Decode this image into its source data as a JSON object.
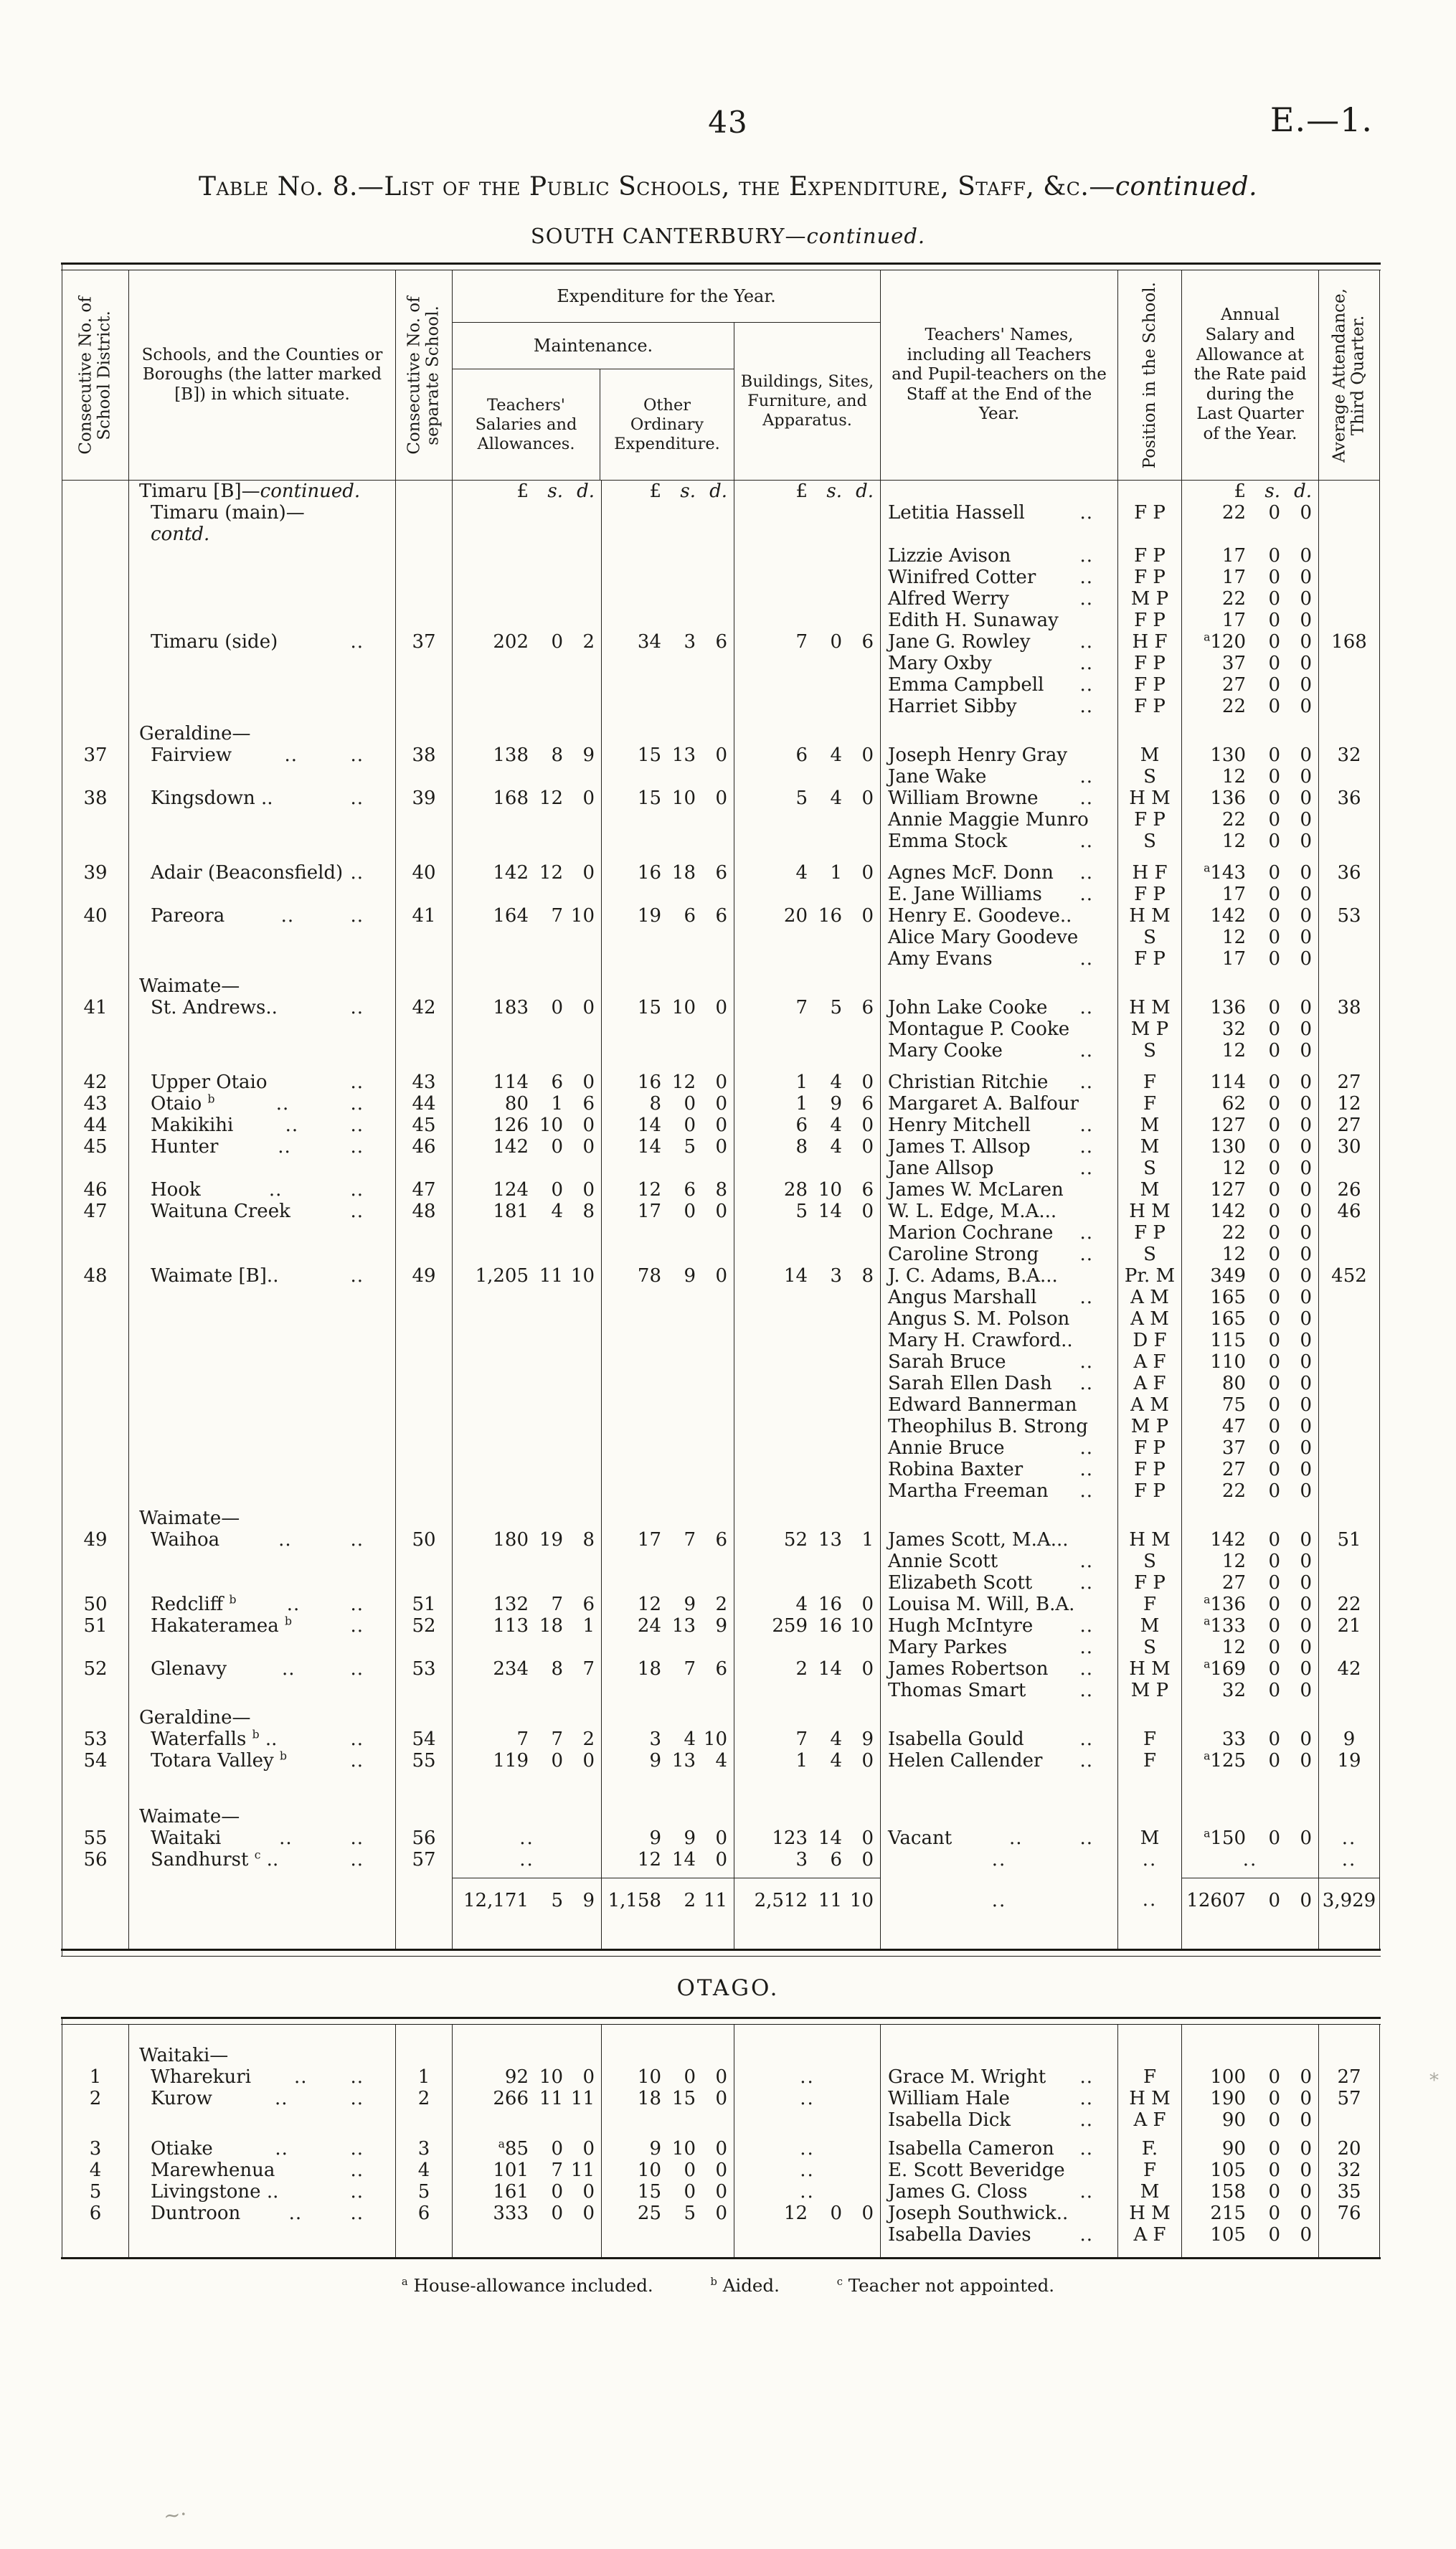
{
  "page": {
    "number": "43",
    "edition": "E.—1.",
    "title": "Table No. 8.—List of the Public Schools, the Expenditure, Staff, &c.—continued.",
    "region": "SOUTH CANTERBURY—continued.",
    "footnotes": [
      "ᵃ House-allowance included.",
      "ᵇ Aided.",
      "ᶜ Teacher not appointed."
    ]
  },
  "headers": {
    "district_no": "Consecutive No. of School District.",
    "schools": "Schools, and the Counties or Boroughs (the latter marked [B]) in which situate.",
    "school_no": "Consecutive No. of separate School.",
    "expenditure": "Expenditure for the Year.",
    "maintenance": "Maintenance.",
    "salaries": "Teachers' Salaries and Allowances.",
    "other": "Other Ordinary Expenditure.",
    "buildings": "Buildings, Sites, Furniture, and Apparatus.",
    "names": "Teachers' Names, including all Teachers and Pupil-teachers on the Staff at the End of the Year.",
    "position": "Position in the School.",
    "salary": "Annual Salary and Allowance at the Rate paid during the Last Quarter of the Year.",
    "attendance": "Average Attendance, Third Quarter."
  },
  "south_canterbury": {
    "lines": [
      {
        "currency_header": true,
        "school": "Timaru [B]—continued."
      },
      {
        "school": "Timaru (main)—contd.",
        "teacher": "Letitia Hassell",
        "teacher_dots": 1,
        "pos": "F P",
        "pay": "22 0 0"
      },
      {
        "teacher": "Lizzie Avison",
        "teacher_dots": 1,
        "pos": "F P",
        "pay": "17 0 0"
      },
      {
        "teacher": "Winifred Cotter",
        "teacher_dots": 1,
        "pos": "F P",
        "pay": "17 0 0"
      },
      {
        "teacher": "Alfred Werry",
        "teacher_dots": 1,
        "pos": "M P",
        "pay": "22 0 0"
      },
      {
        "teacher": "Edith H. Sunaway",
        "pos": "F P",
        "pay": "17 0 0"
      },
      {
        "school": "Timaru (side)",
        "school_dots": 1,
        "sep_no": "37",
        "maint": "202 0 2",
        "other": "34 3 6",
        "build": "7 0 6",
        "teacher": "Jane G. Rowley",
        "teacher_dots": 1,
        "pos": "H F",
        "pay": "ᵃ120 0 0",
        "att": "168"
      },
      {
        "teacher": "Mary Oxby",
        "teacher_dots": 1,
        "pos": "F P",
        "pay": "37 0 0"
      },
      {
        "teacher": "Emma Campbell",
        "teacher_dots": 1,
        "pos": "F P",
        "pay": "27 0 0"
      },
      {
        "teacher": "Harriet Sibby",
        "teacher_dots": 1,
        "pos": "F P",
        "pay": "22 0 0"
      },
      {
        "group": "Geraldine—"
      },
      {
        "no": "37",
        "school": "Fairview",
        "school_dots": 2,
        "sep_no": "38",
        "maint": "138 8 9",
        "other": "15 13 0",
        "build": "6 4 0",
        "teacher": "Joseph Henry Gray",
        "pos": "M",
        "pay": "130 0 0",
        "att": "32"
      },
      {
        "teacher": "Jane Wake",
        "teacher_dots": 1,
        "pos": "S",
        "pay": "12 0 0"
      },
      {
        "no": "38",
        "school": "Kingsdown ..",
        "school_dots": 1,
        "sep_no": "39",
        "maint": "168 12 0",
        "other": "15 10 0",
        "build": "5 4 0",
        "teacher": "William Browne",
        "teacher_dots": 1,
        "pos": "H M",
        "pay": "136 0 0",
        "att": "36"
      },
      {
        "teacher": "Annie Maggie Munro",
        "pos": "F P",
        "pay": "22 0 0"
      },
      {
        "teacher": "Emma Stock",
        "teacher_dots": 1,
        "pos": "S",
        "pay": "12 0 0"
      },
      {
        "gap": 14
      },
      {
        "no": "39",
        "school": "Adair (Beaconsfield)",
        "school_dots": 1,
        "sep_no": "40",
        "maint": "142 12 0",
        "other": "16 18 6",
        "build": "4 1 0",
        "teacher": "Agnes McF. Donn",
        "teacher_dots": 1,
        "pos": "H F",
        "pay": "ᵃ143 0 0",
        "att": "36"
      },
      {
        "teacher": "E. Jane Williams",
        "teacher_dots": 1,
        "pos": "F P",
        "pay": "17 0 0"
      },
      {
        "no": "40",
        "school": "Pareora",
        "school_dots": 2,
        "sep_no": "41",
        "maint": "164 7 10",
        "other": "19 6 6",
        "build": "20 16 0",
        "teacher": "Henry E. Goodeve..",
        "pos": "H M",
        "pay": "142 0 0",
        "att": "53"
      },
      {
        "teacher": "Alice Mary Goodeve",
        "pos": "S",
        "pay": "12 0 0"
      },
      {
        "teacher": "Amy Evans",
        "teacher_dots": 1,
        "pos": "F P",
        "pay": "17 0 0"
      },
      {
        "group": "Waimate—"
      },
      {
        "no": "41",
        "school": "St. Andrews..",
        "school_dots": 1,
        "sep_no": "42",
        "maint": "183 0 0",
        "other": "15 10 0",
        "build": "7 5 6",
        "teacher": "John Lake Cooke",
        "teacher_dots": 1,
        "pos": "H M",
        "pay": "136 0 0",
        "att": "38"
      },
      {
        "teacher": "Montague P. Cooke",
        "pos": "M P",
        "pay": "32 0 0"
      },
      {
        "teacher": "Mary Cooke",
        "teacher_dots": 1,
        "pos": "S",
        "pay": "12 0 0"
      },
      {
        "gap": 14
      },
      {
        "no": "42",
        "school": "Upper Otaio",
        "school_dots": 1,
        "sep_no": "43",
        "maint": "114 6 0",
        "other": "16 12 0",
        "build": "1 4 0",
        "teacher": "Christian Ritchie",
        "teacher_dots": 1,
        "pos": "F",
        "pay": "114 0 0",
        "att": "27"
      },
      {
        "no": "43",
        "school": "Otaio ᵇ",
        "school_dots": 2,
        "sep_no": "44",
        "maint": "80 1 6",
        "other": "8 0 0",
        "build": "1 9 6",
        "teacher": "Margaret A. Balfour",
        "pos": "F",
        "pay": "62 0 0",
        "att": "12"
      },
      {
        "no": "44",
        "school": "Makikihi",
        "school_dots": 2,
        "sep_no": "45",
        "maint": "126 10 0",
        "other": "14 0 0",
        "build": "6 4 0",
        "teacher": "Henry Mitchell",
        "teacher_dots": 1,
        "pos": "M",
        "pay": "127 0 0",
        "att": "27"
      },
      {
        "no": "45",
        "school": "Hunter",
        "school_dots": 2,
        "sep_no": "46",
        "maint": "142 0 0",
        "other": "14 5 0",
        "build": "8 4 0",
        "teacher": "James T. Allsop",
        "teacher_dots": 1,
        "pos": "M",
        "pay": "130 0 0",
        "att": "30"
      },
      {
        "teacher": "Jane Allsop",
        "teacher_dots": 1,
        "pos": "S",
        "pay": "12 0 0"
      },
      {
        "no": "46",
        "school": "Hook",
        "school_dots": 2,
        "sep_no": "47",
        "maint": "124 0 0",
        "other": "12 6 8",
        "build": "28 10 6",
        "teacher": "James W. McLaren",
        "pos": "M",
        "pay": "127 0 0",
        "att": "26"
      },
      {
        "no": "47",
        "school": "Waituna Creek",
        "school_dots": 1,
        "sep_no": "48",
        "maint": "181 4 8",
        "other": "17 0 0",
        "build": "5 14 0",
        "teacher": "W. L. Edge, M.A...",
        "pos": "H M",
        "pay": "142 0 0",
        "att": "46"
      },
      {
        "teacher": "Marion Cochrane",
        "teacher_dots": 1,
        "pos": "F P",
        "pay": "22 0 0"
      },
      {
        "teacher": "Caroline Strong",
        "teacher_dots": 1,
        "pos": "S",
        "pay": "12 0 0"
      },
      {
        "no": "48",
        "school": "Waimate [B]..",
        "school_dots": 1,
        "sep_no": "49",
        "maint": "1,205 11 10",
        "other": "78 9 0",
        "build": "14 3 8",
        "teacher": "J. C. Adams, B.A...",
        "pos": "Pr. M",
        "pay": "349 0 0",
        "att": "452"
      },
      {
        "teacher": "Angus Marshall",
        "teacher_dots": 1,
        "pos": "A M",
        "pay": "165 0 0"
      },
      {
        "teacher": "Angus S. M. Polson",
        "pos": "A M",
        "pay": "165 0 0"
      },
      {
        "teacher": "Mary H. Crawford..",
        "pos": "D F",
        "pay": "115 0 0"
      },
      {
        "teacher": "Sarah Bruce",
        "teacher_dots": 1,
        "pos": "A F",
        "pay": "110 0 0"
      },
      {
        "teacher": "Sarah Ellen Dash",
        "teacher_dots": 1,
        "pos": "A F",
        "pay": "80 0 0"
      },
      {
        "teacher": "Edward Bannerman",
        "pos": "A M",
        "pay": "75 0 0"
      },
      {
        "teacher": "Theophilus B. Strong",
        "pos": "M P",
        "pay": "47 0 0"
      },
      {
        "teacher": "Annie Bruce",
        "teacher_dots": 1,
        "pos": "F P",
        "pay": "37 0 0"
      },
      {
        "teacher": "Robina Baxter",
        "teacher_dots": 1,
        "pos": "F P",
        "pay": "27 0 0"
      },
      {
        "teacher": "Martha Freeman",
        "teacher_dots": 1,
        "pos": "F P",
        "pay": "22 0 0"
      },
      {
        "group": "Waimate—"
      },
      {
        "no": "49",
        "school": "Waihoa",
        "school_dots": 2,
        "sep_no": "50",
        "maint": "180 19 8",
        "other": "17 7 6",
        "build": "52 13 1",
        "teacher": "James Scott, M.A...",
        "pos": "H M",
        "pay": "142 0 0",
        "att": "51"
      },
      {
        "teacher": "Annie Scott",
        "teacher_dots": 1,
        "pos": "S",
        "pay": "12 0 0"
      },
      {
        "teacher": "Elizabeth Scott",
        "teacher_dots": 1,
        "pos": "F P",
        "pay": "27 0 0"
      },
      {
        "no": "50",
        "school": "Redcliff ᵇ",
        "school_dots": 2,
        "sep_no": "51",
        "maint": "132 7 6",
        "other": "12 9 2",
        "build": "4 16 0",
        "teacher": "Louisa M. Will, B.A.",
        "pos": "F",
        "pay": "ᵃ136 0 0",
        "att": "22"
      },
      {
        "no": "51",
        "school": "Hakateramea ᵇ",
        "school_dots": 1,
        "sep_no": "52",
        "maint": "113 18 1",
        "other": "24 13 9",
        "build": "259 16 10",
        "teacher": "Hugh McIntyre",
        "teacher_dots": 1,
        "pos": "M",
        "pay": "ᵃ133 0 0",
        "att": "21"
      },
      {
        "teacher": "Mary Parkes",
        "teacher_dots": 1,
        "pos": "S",
        "pay": "12 0 0"
      },
      {
        "no": "52",
        "school": "Glenavy",
        "school_dots": 2,
        "sep_no": "53",
        "maint": "234 8 7",
        "other": "18 7 6",
        "build": "2 14 0",
        "teacher": "James Robertson",
        "teacher_dots": 1,
        "pos": "H M",
        "pay": "ᵃ169 0 0",
        "att": "42"
      },
      {
        "teacher": "Thomas Smart",
        "teacher_dots": 1,
        "pos": "M P",
        "pay": "32 0 0"
      },
      {
        "group": "Geraldine—"
      },
      {
        "no": "53",
        "school": "Waterfalls ᵇ ..",
        "school_dots": 1,
        "sep_no": "54",
        "maint": "7 7 2",
        "other": "3 4 10",
        "build": "7 4 9",
        "teacher": "Isabella Gould",
        "teacher_dots": 1,
        "pos": "F",
        "pay": "33 0 0",
        "att": "9"
      },
      {
        "no": "54",
        "school": "Totara Valley ᵇ",
        "school_dots": 1,
        "sep_no": "55",
        "maint": "119 0 0",
        "other": "9 13 4",
        "build": "1 4 0",
        "teacher": "Helen Callender",
        "teacher_dots": 1,
        "pos": "F",
        "pay": "ᵃ125 0 0",
        "att": "19"
      },
      {
        "gap": 40
      },
      {
        "group": "Waimate—"
      },
      {
        "no": "55",
        "school": "Waitaki",
        "school_dots": 2,
        "sep_no": "56",
        "maint": "..",
        "other": "9 9 0",
        "build": "123 14 0",
        "teacher": "Vacant",
        "teacher_dots": 2,
        "pos": "M",
        "pay": "ᵃ150 0 0",
        "att": ".."
      },
      {
        "no": "56",
        "school": "Sandhurst ᶜ ..",
        "school_dots": 1,
        "sep_no": "57",
        "maint": "..",
        "other": "12 14 0",
        "build": "3 6 0",
        "teacher": "..",
        "pos": "..",
        "pay": "..",
        "att": ".."
      },
      {
        "gap": 10
      },
      {
        "total": true,
        "maint": "12,171 5 9",
        "other": "1,158 2 11",
        "build": "2,512 11 10",
        "teacher": "..",
        "pos": "..",
        "pay": "12607 0 0",
        "att": "3,929"
      },
      {
        "gap": 40
      }
    ]
  },
  "otago": {
    "heading": "OTAGO.",
    "lines": [
      {
        "gap": 20
      },
      {
        "group": "Waitaki—"
      },
      {
        "no": "1",
        "school": "Wharekuri",
        "school_dots": 2,
        "sep_no": "1",
        "maint": "92 10 0",
        "other": "10 0 0",
        "build": "..",
        "teacher": "Grace M. Wright",
        "teacher_dots": 1,
        "pos": "F",
        "pay": "100 0 0",
        "att": "27"
      },
      {
        "no": "2",
        "school": "Kurow",
        "school_dots": 2,
        "sep_no": "2",
        "maint": "266 11 11",
        "other": "18 15 0",
        "build": "..",
        "teacher": "William Hale",
        "teacher_dots": 1,
        "pos": "H M",
        "pay": "190 0 0",
        "att": "57"
      },
      {
        "teacher": "Isabella Dick",
        "teacher_dots": 1,
        "pos": "A F",
        "pay": "90 0 0"
      },
      {
        "gap": 10
      },
      {
        "no": "3",
        "school": "Otiake",
        "school_dots": 2,
        "sep_no": "3",
        "maint": "ᵃ85 0 0",
        "other": "9 10 0",
        "build": "..",
        "teacher": "Isabella Cameron",
        "teacher_dots": 1,
        "pos": "F.",
        "pay": "90 0 0",
        "att": "20"
      },
      {
        "no": "4",
        "school": "Marewhenua",
        "school_dots": 1,
        "sep_no": "4",
        "maint": "101 7 11",
        "other": "10 0 0",
        "build": "..",
        "teacher": "E. Scott Beveridge",
        "pos": "F",
        "pay": "105 0 0",
        "att": "32"
      },
      {
        "no": "5",
        "school": "Livingstone ..",
        "school_dots": 1,
        "sep_no": "5",
        "maint": "161 0 0",
        "other": "15 0 0",
        "build": "..",
        "teacher": "James G. Closs",
        "teacher_dots": 1,
        "pos": "M",
        "pay": "158 0 0",
        "att": "35"
      },
      {
        "no": "6",
        "school": "Duntroon",
        "school_dots": 2,
        "sep_no": "6",
        "maint": "333 0 0",
        "other": "25 5 0",
        "build": "12 0 0",
        "teacher": "Joseph Southwick..",
        "pos": "H M",
        "pay": "215 0 0",
        "att": "76"
      },
      {
        "teacher": "Isabella Davies",
        "teacher_dots": 1,
        "pos": "A F",
        "pay": "105 0 0"
      },
      {
        "gap": 16
      }
    ]
  },
  "artifacts": {
    "pencil_mark": "~·",
    "side_mark": "⁎"
  }
}
